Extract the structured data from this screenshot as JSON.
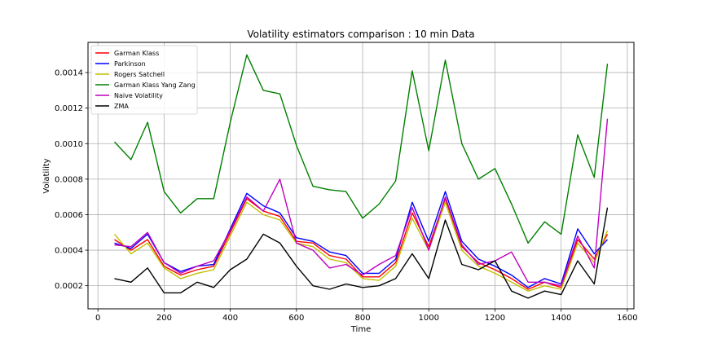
{
  "chart_data": {
    "type": "line",
    "title": "Volatility estimators comparison : 10 min Data",
    "xlabel": "Time",
    "ylabel": "Volatility",
    "xlim": [
      -30,
      1620
    ],
    "ylim": [
      7e-05,
      0.00157
    ],
    "xticks": [
      0,
      200,
      400,
      600,
      800,
      1000,
      1200,
      1400,
      1600
    ],
    "yticks": [
      0.0002,
      0.0004,
      0.0006,
      0.0008,
      0.001,
      0.0012,
      0.0014
    ],
    "ytick_labels": [
      "0.0002",
      "0.0004",
      "0.0006",
      "0.0008",
      "0.0010",
      "0.0012",
      "0.0014"
    ],
    "grid": true,
    "legend_position": "top-left",
    "x": [
      50,
      100,
      150,
      200,
      250,
      300,
      350,
      400,
      450,
      500,
      550,
      600,
      650,
      700,
      750,
      800,
      850,
      900,
      950,
      1000,
      1050,
      1100,
      1150,
      1200,
      1250,
      1300,
      1350,
      1400,
      1450,
      1500,
      1540
    ],
    "series": [
      {
        "name": "Garman Klass",
        "color": "#ff0000",
        "values": [
          0.00046,
          0.0004,
          0.00046,
          0.00031,
          0.00026,
          0.00029,
          0.00031,
          0.0005,
          0.00069,
          0.00062,
          0.00059,
          0.00045,
          0.00044,
          0.00037,
          0.00035,
          0.00025,
          0.00025,
          0.00033,
          0.00061,
          0.00042,
          0.00069,
          0.00042,
          0.00033,
          0.00029,
          0.00024,
          0.00018,
          0.00022,
          0.00019,
          0.00046,
          0.00035,
          0.00049
        ]
      },
      {
        "name": "Parkinson",
        "color": "#0000ff",
        "values": [
          0.00044,
          0.00041,
          0.00049,
          0.00033,
          0.00028,
          0.00031,
          0.00032,
          0.00052,
          0.00072,
          0.00065,
          0.00061,
          0.00047,
          0.00045,
          0.00039,
          0.00037,
          0.00027,
          0.00027,
          0.00035,
          0.00067,
          0.00045,
          0.00073,
          0.00045,
          0.00035,
          0.00031,
          0.00026,
          0.00019,
          0.00024,
          0.00021,
          0.00052,
          0.00038,
          0.00046
        ]
      },
      {
        "name": "Rogers Satchell",
        "color": "#bfbf00",
        "values": [
          0.00049,
          0.00038,
          0.00044,
          0.0003,
          0.00024,
          0.00027,
          0.00029,
          0.00048,
          0.00067,
          0.0006,
          0.00057,
          0.00044,
          0.00042,
          0.00035,
          0.00033,
          0.00024,
          0.00023,
          0.00031,
          0.00058,
          0.0004,
          0.00067,
          0.0004,
          0.00031,
          0.00027,
          0.00022,
          0.00017,
          0.0002,
          0.00018,
          0.00044,
          0.00033,
          0.00051
        ]
      },
      {
        "name": "Garman Klass Yang Zang",
        "color": "#008000",
        "values": [
          0.00101,
          0.00091,
          0.00112,
          0.00073,
          0.00061,
          0.00069,
          0.00069,
          0.00112,
          0.0015,
          0.0013,
          0.00128,
          0.00099,
          0.00076,
          0.00074,
          0.00073,
          0.00058,
          0.00066,
          0.00079,
          0.00141,
          0.00096,
          0.00147,
          0.001,
          0.0008,
          0.00086,
          0.00066,
          0.00044,
          0.00056,
          0.00049,
          0.00105,
          0.00081,
          0.00145
        ]
      },
      {
        "name": "Naive Volatility",
        "color": "#bf00bf",
        "values": [
          0.00043,
          0.00042,
          0.0005,
          0.00033,
          0.00027,
          0.00031,
          0.00034,
          0.00051,
          0.0007,
          0.00062,
          0.0008,
          0.00044,
          0.0004,
          0.0003,
          0.00032,
          0.00026,
          0.00032,
          0.00037,
          0.00064,
          0.0004,
          0.0007,
          0.00043,
          0.00032,
          0.00034,
          0.00039,
          0.00022,
          0.00022,
          0.0002,
          0.00048,
          0.0003,
          0.00114
        ]
      },
      {
        "name": "ZMA",
        "color": "#000000",
        "values": [
          0.00024,
          0.00022,
          0.0003,
          0.00016,
          0.00016,
          0.00022,
          0.00019,
          0.00029,
          0.00035,
          0.00049,
          0.00044,
          0.00031,
          0.0002,
          0.00018,
          0.00021,
          0.00019,
          0.0002,
          0.00024,
          0.00038,
          0.00024,
          0.00057,
          0.00032,
          0.00029,
          0.00034,
          0.00017,
          0.00013,
          0.00017,
          0.00015,
          0.00034,
          0.00021,
          0.00064
        ]
      }
    ]
  }
}
